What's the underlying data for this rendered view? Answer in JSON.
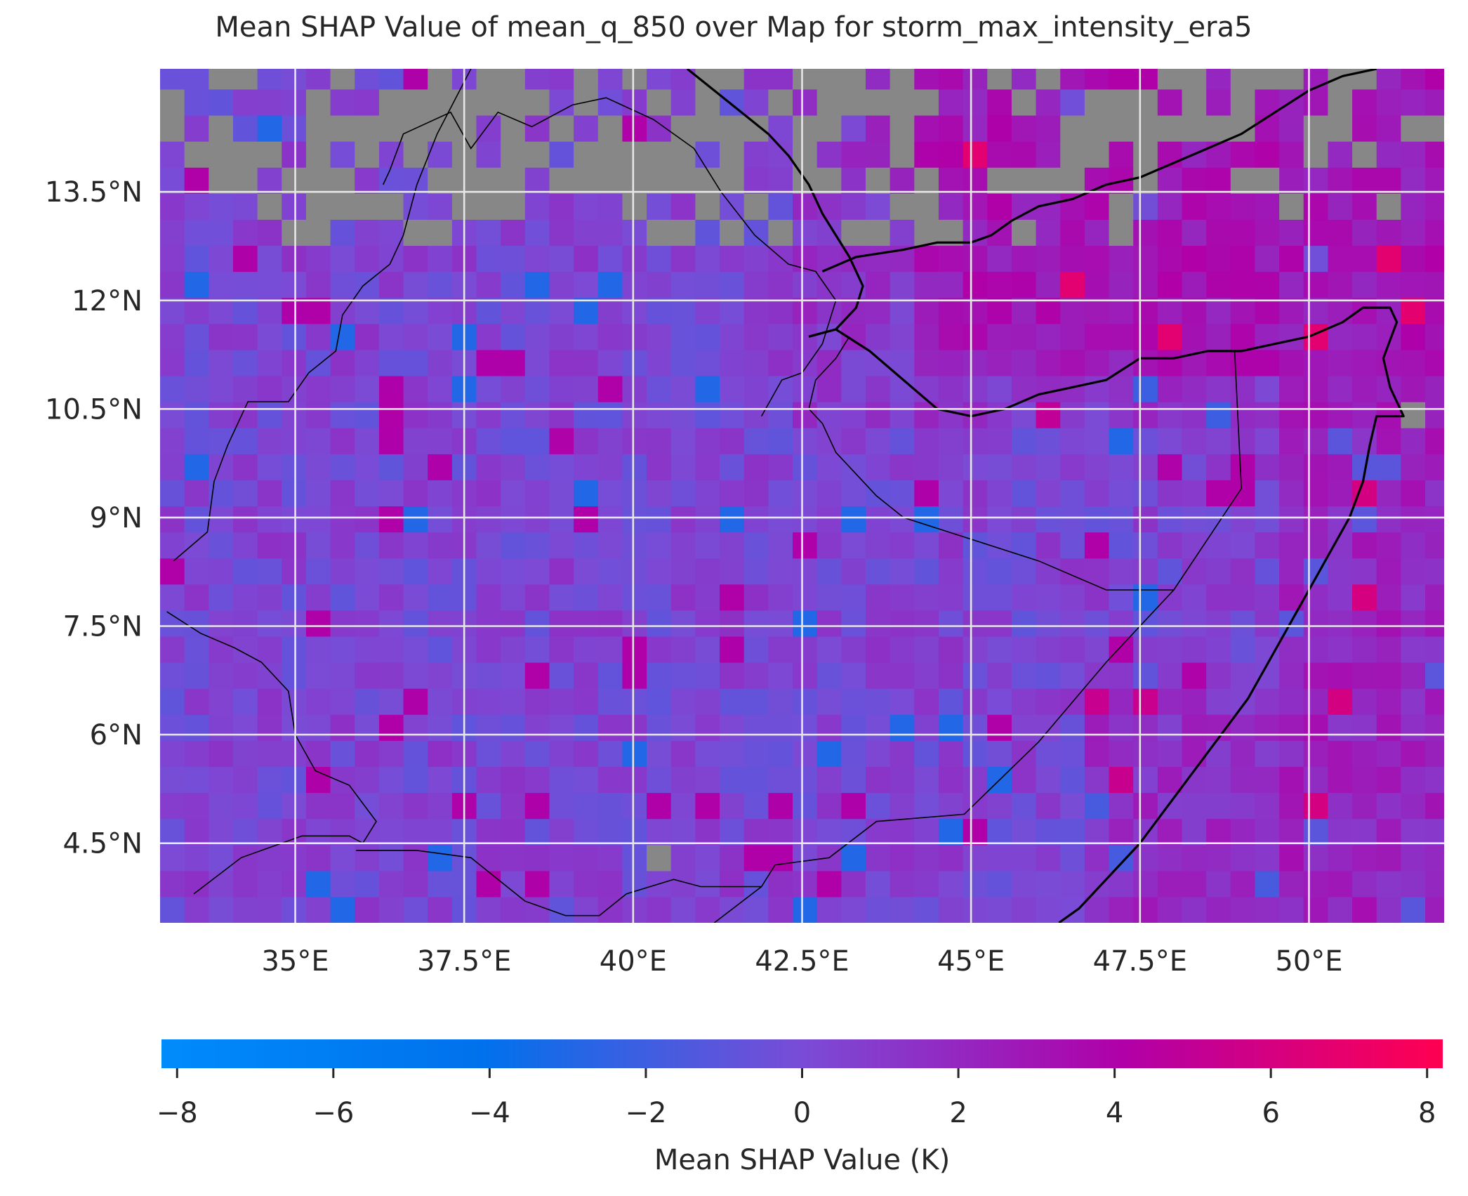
{
  "chart_data": {
    "type": "heatmap",
    "title": "Mean SHAP Value of mean_q_850 over Map for storm_max_intensity_era5",
    "xlabel": "",
    "ylabel": "",
    "x_unit": "degrees_east",
    "y_unit": "degrees_north",
    "xlim": [
      33.0,
      52.0
    ],
    "ylim": [
      3.4,
      15.2
    ],
    "grid": true,
    "grid_resolution_deg": 0.36,
    "x_ticks": [
      35,
      37.5,
      40,
      42.5,
      45,
      47.5,
      50
    ],
    "x_tick_labels": [
      "35°E",
      "37.5°E",
      "40°E",
      "42.5°E",
      "45°E",
      "47.5°E",
      "50°E"
    ],
    "y_ticks": [
      4.5,
      6,
      7.5,
      9,
      10.5,
      12,
      13.5
    ],
    "y_tick_labels": [
      "4.5°N",
      "6°N",
      "7.5°N",
      "9°N",
      "10.5°N",
      "12°N",
      "13.5°N"
    ],
    "colorbar": {
      "label": "Mean SHAP Value (K)",
      "orientation": "horizontal",
      "location": "bottom",
      "range": [
        -8.2,
        8.2
      ],
      "ticks": [
        -8,
        -6,
        -4,
        -2,
        0,
        2,
        4,
        6,
        8
      ],
      "tick_labels": [
        "−8",
        "−6",
        "−4",
        "−2",
        "0",
        "2",
        "4",
        "6",
        "8"
      ],
      "colormap_stops": [
        "#008bfb",
        "#0071ec",
        "#7a4cd6",
        "#b000a8",
        "#ff0051"
      ]
    },
    "masked_color": "#878787",
    "value_summary": {
      "land_typical": 0.3,
      "north_east_sea_typical": 3.0,
      "max_approx": 7.5,
      "min_approx": -4.0
    },
    "masked_region": "over land north of about 12.5°N (no data, grey)",
    "boundaries": {
      "coastline": [
        [
          [
            40.8,
            15.2
          ],
          [
            41.2,
            14.9
          ],
          [
            41.6,
            14.6
          ],
          [
            42.0,
            14.3
          ],
          [
            42.3,
            14.0
          ],
          [
            42.6,
            13.6
          ],
          [
            42.8,
            13.2
          ],
          [
            43.0,
            12.9
          ],
          [
            43.2,
            12.6
          ],
          [
            43.4,
            12.2
          ],
          [
            43.3,
            11.9
          ],
          [
            43.0,
            11.6
          ],
          [
            42.6,
            11.5
          ]
        ],
        [
          [
            42.6,
            11.5
          ],
          [
            43.0,
            11.6
          ],
          [
            43.5,
            11.3
          ],
          [
            44.0,
            10.9
          ],
          [
            44.5,
            10.5
          ],
          [
            45.0,
            10.4
          ],
          [
            45.5,
            10.5
          ],
          [
            46.0,
            10.7
          ],
          [
            46.5,
            10.8
          ],
          [
            47.0,
            10.9
          ],
          [
            47.5,
            11.2
          ],
          [
            48.0,
            11.2
          ],
          [
            48.5,
            11.3
          ],
          [
            49.0,
            11.3
          ],
          [
            49.5,
            11.4
          ],
          [
            50.0,
            11.5
          ],
          [
            50.5,
            11.7
          ],
          [
            50.8,
            11.9
          ],
          [
            51.2,
            11.9
          ],
          [
            51.3,
            11.7
          ],
          [
            51.1,
            11.2
          ],
          [
            51.2,
            10.8
          ],
          [
            51.4,
            10.4
          ],
          [
            51.0,
            10.4
          ],
          [
            50.9,
            10.0
          ],
          [
            50.8,
            9.5
          ],
          [
            50.6,
            9.0
          ],
          [
            50.3,
            8.5
          ],
          [
            50.0,
            8.0
          ],
          [
            49.7,
            7.5
          ],
          [
            49.4,
            7.0
          ],
          [
            49.1,
            6.5
          ],
          [
            48.7,
            6.0
          ],
          [
            48.3,
            5.5
          ],
          [
            47.9,
            5.0
          ],
          [
            47.5,
            4.5
          ],
          [
            47.0,
            4.0
          ],
          [
            46.6,
            3.6
          ],
          [
            46.3,
            3.4
          ]
        ],
        [
          [
            42.8,
            12.4
          ],
          [
            43.3,
            12.6
          ],
          [
            44.0,
            12.7
          ],
          [
            44.5,
            12.8
          ],
          [
            45.0,
            12.8
          ],
          [
            45.3,
            12.9
          ],
          [
            45.6,
            13.1
          ],
          [
            46.0,
            13.3
          ],
          [
            46.5,
            13.4
          ],
          [
            47.0,
            13.6
          ],
          [
            47.5,
            13.7
          ],
          [
            48.0,
            13.9
          ],
          [
            48.5,
            14.1
          ],
          [
            49.0,
            14.3
          ],
          [
            49.5,
            14.6
          ],
          [
            50.0,
            14.9
          ],
          [
            50.5,
            15.1
          ],
          [
            51.0,
            15.2
          ]
        ]
      ],
      "borders": [
        [
          [
            37.6,
            15.2
          ],
          [
            37.1,
            14.3
          ],
          [
            36.8,
            13.6
          ],
          [
            36.6,
            12.9
          ],
          [
            36.4,
            12.5
          ],
          [
            36.0,
            12.2
          ],
          [
            35.7,
            11.8
          ],
          [
            35.6,
            11.3
          ],
          [
            35.2,
            11.0
          ],
          [
            34.9,
            10.6
          ],
          [
            34.3,
            10.6
          ],
          [
            34.0,
            10.0
          ],
          [
            33.8,
            9.5
          ],
          [
            33.7,
            8.8
          ],
          [
            33.2,
            8.4
          ]
        ],
        [
          [
            33.1,
            7.7
          ],
          [
            33.6,
            7.4
          ],
          [
            34.1,
            7.2
          ],
          [
            34.5,
            7.0
          ],
          [
            34.9,
            6.6
          ],
          [
            35.0,
            6.0
          ],
          [
            35.3,
            5.5
          ],
          [
            35.8,
            5.3
          ],
          [
            36.2,
            4.8
          ],
          [
            36.0,
            4.5
          ],
          [
            35.8,
            4.6
          ],
          [
            35.1,
            4.6
          ],
          [
            34.2,
            4.3
          ],
          [
            33.5,
            3.8
          ]
        ],
        [
          [
            35.9,
            4.4
          ],
          [
            36.8,
            4.4
          ],
          [
            37.6,
            4.3
          ],
          [
            38.4,
            3.7
          ],
          [
            39.0,
            3.5
          ],
          [
            39.5,
            3.5
          ],
          [
            39.9,
            3.8
          ],
          [
            40.6,
            4.0
          ],
          [
            41.0,
            3.9
          ],
          [
            41.6,
            3.9
          ],
          [
            41.9,
            3.9
          ],
          [
            42.1,
            4.2
          ],
          [
            42.9,
            4.3
          ],
          [
            43.6,
            4.8
          ],
          [
            44.9,
            4.9
          ],
          [
            46.0,
            5.9
          ],
          [
            47.0,
            7.0
          ],
          [
            48.0,
            8.0
          ],
          [
            47.0,
            8.0
          ],
          [
            46.0,
            8.4
          ],
          [
            44.0,
            9.0
          ],
          [
            43.6,
            9.3
          ],
          [
            43.3,
            9.6
          ],
          [
            43.0,
            9.9
          ],
          [
            42.8,
            10.3
          ],
          [
            42.6,
            10.5
          ],
          [
            42.7,
            10.9
          ],
          [
            43.0,
            11.2
          ],
          [
            43.2,
            11.5
          ]
        ],
        [
          [
            41.2,
            3.4
          ],
          [
            41.9,
            3.9
          ]
        ],
        [
          [
            48.0,
            8.0
          ],
          [
            49.0,
            9.4
          ],
          [
            48.9,
            11.3
          ]
        ],
        [
          [
            41.9,
            10.4
          ],
          [
            42.2,
            10.9
          ],
          [
            42.5,
            11.0
          ],
          [
            42.8,
            11.4
          ],
          [
            43.0,
            12.0
          ],
          [
            42.7,
            12.4
          ],
          [
            42.3,
            12.5
          ],
          [
            41.8,
            12.9
          ],
          [
            41.3,
            13.5
          ],
          [
            40.9,
            14.1
          ],
          [
            40.3,
            14.5
          ],
          [
            39.6,
            14.8
          ],
          [
            39.1,
            14.7
          ],
          [
            38.5,
            14.4
          ],
          [
            38.0,
            14.6
          ],
          [
            37.6,
            14.1
          ],
          [
            37.3,
            14.6
          ],
          [
            36.6,
            14.3
          ],
          [
            36.4,
            13.8
          ],
          [
            36.3,
            13.6
          ]
        ]
      ]
    }
  }
}
